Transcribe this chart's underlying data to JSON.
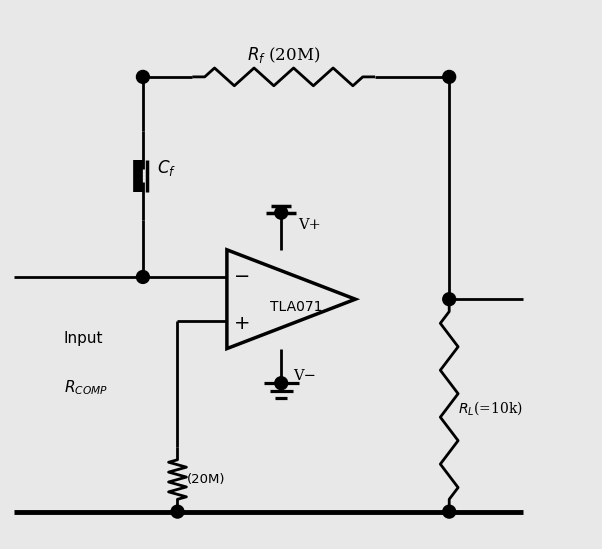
{
  "background_color": "#e8e8e8",
  "line_color": "#000000",
  "line_width": 2.0,
  "fig_width": 6.02,
  "fig_height": 5.49,
  "dpi": 100,
  "xlim": [
    0,
    12
  ],
  "ylim": [
    0,
    11
  ],
  "rf_label": "$R_f$ (20M)",
  "cf_label": "$C_f$",
  "opamp_label": "TLA071",
  "vplus_label": "V+",
  "vminus_label": "V−",
  "rcomp_label": "$R_{COMP}$",
  "rcomp_value": "(20M)",
  "rl_label": "$R_L$(=10k)",
  "input_label": "Input"
}
